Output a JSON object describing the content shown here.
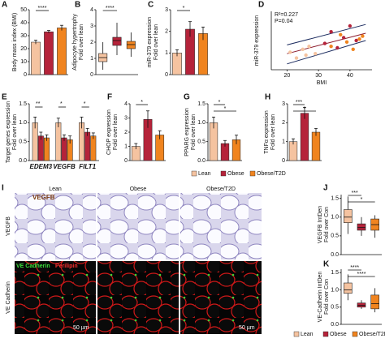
{
  "legend": {
    "names": [
      "Lean",
      "Obese",
      "Obese/T2D"
    ],
    "colors": [
      "#f5c3a0",
      "#b5233a",
      "#f0841f"
    ]
  },
  "chart_data": [
    {
      "type": "bar",
      "letter": "A",
      "ylabel": [
        "Body mass index (BMI)"
      ],
      "values": [
        25,
        33,
        36
      ],
      "errors": [
        1.5,
        1,
        2
      ],
      "ylim": [
        0,
        50
      ],
      "yticks": [
        0,
        10,
        20,
        30,
        40,
        50
      ],
      "annotations": [
        "****"
      ]
    },
    {
      "type": "box",
      "letter": "B",
      "ylabel": [
        "Adipocyte hypertrophy",
        "Fold over lean"
      ],
      "boxes": [
        {
          "low": 0.3,
          "q1": 0.8,
          "median": 1.05,
          "q3": 1.3,
          "high": 2.0
        },
        {
          "low": 1.2,
          "q1": 1.8,
          "median": 2.1,
          "q3": 2.3,
          "high": 3.2
        },
        {
          "low": 1.1,
          "q1": 1.6,
          "median": 1.85,
          "q3": 2.05,
          "high": 2.6
        }
      ],
      "ylim": [
        0,
        4
      ],
      "yticks": [
        0,
        1,
        2,
        3,
        4
      ],
      "annotations": [
        "****"
      ]
    },
    {
      "type": "bar",
      "letter": "C",
      "ylabel": [
        "miR-379 expression",
        "Fold over lean"
      ],
      "values": [
        1,
        2.1,
        1.9
      ],
      "errors": [
        0.15,
        0.35,
        0.3
      ],
      "ylim": [
        0,
        3
      ],
      "yticks": [
        0,
        1,
        2,
        3
      ],
      "annotations": [
        "*"
      ]
    },
    {
      "type": "scatter",
      "letter": "D",
      "ylabel": [
        "miR-379 expression"
      ],
      "xlabel": "BMI",
      "xlim": [
        15,
        47
      ],
      "xticks": [
        20,
        30,
        40
      ],
      "ylim": [
        0,
        4
      ],
      "series": [
        {
          "color": "#f5c3a0",
          "x": [
            21,
            23,
            25,
            26,
            27,
            29
          ],
          "y": [
            1.2,
            0.8,
            1.4,
            1.0,
            1.6,
            1.1
          ]
        },
        {
          "color": "#b5233a",
          "x": [
            32,
            34,
            36,
            38,
            40,
            42
          ],
          "y": [
            1.8,
            2.6,
            1.5,
            2.2,
            3.0,
            2.0
          ]
        },
        {
          "color": "#f0841f",
          "x": [
            34,
            37,
            39,
            41,
            43,
            44
          ],
          "y": [
            1.6,
            2.4,
            1.9,
            1.4,
            2.1,
            2.3
          ]
        }
      ],
      "lines": [
        {
          "color": "#8b1a2b",
          "x": [
            20,
            45
          ],
          "y": [
            1.1,
            2.5
          ]
        },
        {
          "color": "#1a2a5e",
          "x": [
            20,
            45
          ],
          "y": [
            0.4,
            2.0
          ]
        },
        {
          "color": "#1a2a5e",
          "x": [
            20,
            45
          ],
          "y": [
            1.7,
            3.1
          ]
        }
      ],
      "annotations": [
        "R²=0.227",
        "P=0.04"
      ]
    },
    {
      "type": "grouped_bar",
      "letter": "E",
      "ylabel": [
        "Target genes expression",
        "Fold over lean"
      ],
      "categories": [
        "EDEM3",
        "VEGFB",
        "FILT1"
      ],
      "series": [
        {
          "values": [
            1,
            1,
            1
          ],
          "errors": [
            0.15,
            0.12,
            0.15
          ]
        },
        {
          "values": [
            0.65,
            0.6,
            0.75
          ],
          "errors": [
            0.1,
            0.08,
            0.1
          ]
        },
        {
          "values": [
            0.6,
            0.55,
            0.65
          ],
          "errors": [
            0.08,
            0.1,
            0.08
          ]
        }
      ],
      "ylim": [
        0,
        1.5
      ],
      "yticks": [
        {
          "value": 0,
          "label": "0.0"
        },
        {
          "value": 0.5,
          "label": "0.5"
        },
        {
          "value": 1,
          "label": "1.0"
        },
        {
          "value": 1.5,
          "label": "1.5"
        }
      ],
      "annotations": [
        "**",
        "*",
        "*"
      ]
    },
    {
      "type": "bar",
      "letter": "F",
      "ylabel": [
        "CHOP expression",
        "Fold over lean"
      ],
      "values": [
        1,
        2.9,
        1.8
      ],
      "errors": [
        0.2,
        0.6,
        0.3
      ],
      "ylim": [
        0,
        4
      ],
      "yticks": [
        0,
        1,
        2,
        3,
        4
      ],
      "annotations": [
        "*"
      ]
    },
    {
      "type": "bar",
      "letter": "G",
      "ylabel": [
        "PPARG expression",
        "Fold over lean"
      ],
      "values": [
        1,
        0.45,
        0.55
      ],
      "errors": [
        0.15,
        0.08,
        0.12
      ],
      "ylim": [
        0,
        1.5
      ],
      "yticks": [
        {
          "value": 0,
          "label": "0.0"
        },
        {
          "value": 0.5,
          "label": "0.5"
        },
        {
          "value": 1,
          "label": "1.0"
        },
        {
          "value": 1.5,
          "label": "1.5"
        }
      ],
      "annotations": [
        "*",
        "*"
      ]
    },
    {
      "type": "bar",
      "letter": "H",
      "ylabel": [
        "TNFα expression",
        "Fold over lean"
      ],
      "values": [
        1,
        2.5,
        1.5
      ],
      "errors": [
        0.15,
        0.3,
        0.2
      ],
      "ylim": [
        0,
        3
      ],
      "yticks": [
        0,
        1,
        2,
        3
      ],
      "annotations": [
        "***",
        "*"
      ]
    },
    {
      "type": "box",
      "letter": "J",
      "ylabel": [
        "VEGFB IntDen",
        "Fold over Con"
      ],
      "boxes": [
        {
          "low": 0.55,
          "q1": 0.85,
          "median": 1.0,
          "q3": 1.2,
          "high": 1.55
        },
        {
          "low": 0.5,
          "q1": 0.65,
          "median": 0.72,
          "q3": 0.82,
          "high": 1.0
        },
        {
          "low": 0.45,
          "q1": 0.65,
          "median": 0.8,
          "q3": 0.95,
          "high": 1.05
        }
      ],
      "ylim": [
        0,
        1.6
      ],
      "yticks": [
        {
          "value": 0,
          "label": "0.0"
        },
        {
          "value": 0.5,
          "label": "0.5"
        },
        {
          "value": 1,
          "label": "1.0"
        },
        {
          "value": 1.5,
          "label": "1.5"
        }
      ],
      "annotations": [
        "***",
        "*"
      ]
    },
    {
      "type": "box",
      "letter": "K",
      "ylabel": [
        "VE-Cadherin IntDen",
        "Fold over Con"
      ],
      "boxes": [
        {
          "low": 0.7,
          "q1": 0.9,
          "median": 1.0,
          "q3": 1.2,
          "high": 1.45
        },
        {
          "low": 0.45,
          "q1": 0.5,
          "median": 0.55,
          "q3": 0.62,
          "high": 0.7
        },
        {
          "low": 0.35,
          "q1": 0.45,
          "median": 0.6,
          "q3": 0.85,
          "high": 1.05
        }
      ],
      "ylim": [
        0,
        1.6
      ],
      "yticks": [
        {
          "value": 0,
          "label": "0.0"
        },
        {
          "value": 0.5,
          "label": "0.5"
        },
        {
          "value": 1,
          "label": "1.0"
        },
        {
          "value": 1.5,
          "label": "1.5"
        }
      ],
      "annotations": [
        "****",
        "****"
      ]
    }
  ],
  "images": {
    "letter": "I",
    "columns": [
      "Lean",
      "Obese",
      "Obese/T2D"
    ],
    "rows": [
      "VEGFB",
      "VE Cadherin"
    ],
    "stain_top": "VEGFB",
    "stain_bottom": [
      "VE Cadherin",
      "Perilipin"
    ],
    "scale": "50 µm"
  }
}
